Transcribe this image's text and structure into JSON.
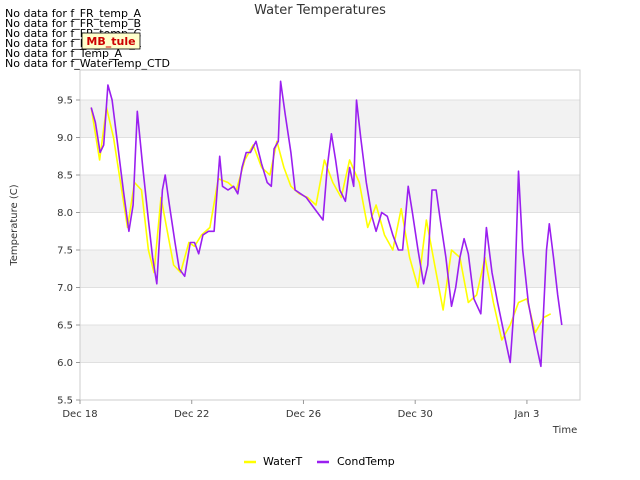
{
  "no_data_messages": [
    "No data for f_FR_temp_A",
    "No data for f_FR_temp_B",
    "No data for f_FR_temp_C",
    "No data for f_FD_Temp_1",
    "No data for f_Temp_A",
    "No data for f_WaterTemp_CTD"
  ],
  "mb_label": "MB_tule",
  "chart_data": {
    "type": "line",
    "title": "Water Temperatures",
    "xlabel": "Time",
    "ylabel": "Temperature (C)",
    "xlim": [
      0,
      17.9
    ],
    "ylim": [
      5.5,
      9.9
    ],
    "x_ticks": [
      {
        "label": "Dec 18",
        "x": 0
      },
      {
        "label": "Dec 22",
        "x": 4
      },
      {
        "label": "Dec 26",
        "x": 8
      },
      {
        "label": "Dec 30",
        "x": 12
      },
      {
        "label": "Jan 3",
        "x": 16
      }
    ],
    "y_ticks": [
      {
        "label": "5.5",
        "y": 5.5
      },
      {
        "label": "6.0",
        "y": 6.0
      },
      {
        "label": "6.5",
        "y": 6.5
      },
      {
        "label": "7.0",
        "y": 7.0
      },
      {
        "label": "7.5",
        "y": 7.5
      },
      {
        "label": "8.0",
        "y": 8.0
      },
      {
        "label": "8.5",
        "y": 8.5
      },
      {
        "label": "9.0",
        "y": 9.0
      },
      {
        "label": "9.5",
        "y": 9.5
      }
    ],
    "grid": true,
    "legend_position": "bottom-center",
    "series": [
      {
        "name": "WaterT",
        "color": "#ffff00",
        "points": [
          [
            0.4,
            9.4
          ],
          [
            0.7,
            8.7
          ],
          [
            0.95,
            9.4
          ],
          [
            1.2,
            9.0
          ],
          [
            1.45,
            8.4
          ],
          [
            1.7,
            7.8
          ],
          [
            1.95,
            8.4
          ],
          [
            2.2,
            8.3
          ],
          [
            2.45,
            7.5
          ],
          [
            2.65,
            7.2
          ],
          [
            2.9,
            8.2
          ],
          [
            3.1,
            7.8
          ],
          [
            3.35,
            7.3
          ],
          [
            3.6,
            7.2
          ],
          [
            3.9,
            7.6
          ],
          [
            4.1,
            7.55
          ],
          [
            4.35,
            7.7
          ],
          [
            4.65,
            7.8
          ],
          [
            4.95,
            8.45
          ],
          [
            5.3,
            8.4
          ],
          [
            5.6,
            8.3
          ],
          [
            5.9,
            8.7
          ],
          [
            6.2,
            8.9
          ],
          [
            6.5,
            8.6
          ],
          [
            6.8,
            8.5
          ],
          [
            7.05,
            8.95
          ],
          [
            7.3,
            8.6
          ],
          [
            7.55,
            8.35
          ],
          [
            7.85,
            8.25
          ],
          [
            8.15,
            8.2
          ],
          [
            8.45,
            8.1
          ],
          [
            8.75,
            8.7
          ],
          [
            9.05,
            8.4
          ],
          [
            9.35,
            8.2
          ],
          [
            9.65,
            8.7
          ],
          [
            10.0,
            8.4
          ],
          [
            10.3,
            7.8
          ],
          [
            10.6,
            8.1
          ],
          [
            10.9,
            7.7
          ],
          [
            11.2,
            7.5
          ],
          [
            11.5,
            8.05
          ],
          [
            11.8,
            7.4
          ],
          [
            12.1,
            7.0
          ],
          [
            12.4,
            7.9
          ],
          [
            12.7,
            7.3
          ],
          [
            13.0,
            6.7
          ],
          [
            13.3,
            7.5
          ],
          [
            13.6,
            7.4
          ],
          [
            13.9,
            6.8
          ],
          [
            14.2,
            6.9
          ],
          [
            14.5,
            7.4
          ],
          [
            14.8,
            6.8
          ],
          [
            15.1,
            6.3
          ],
          [
            15.4,
            6.5
          ],
          [
            15.7,
            6.8
          ],
          [
            16.0,
            6.85
          ],
          [
            16.3,
            6.4
          ],
          [
            16.6,
            6.6
          ],
          [
            16.85,
            6.65
          ]
        ]
      },
      {
        "name": "CondTemp",
        "color": "#9a1ff0",
        "points": [
          [
            0.4,
            9.4
          ],
          [
            0.55,
            9.2
          ],
          [
            0.72,
            8.8
          ],
          [
            0.85,
            8.9
          ],
          [
            1.0,
            9.7
          ],
          [
            1.15,
            9.5
          ],
          [
            1.35,
            8.9
          ],
          [
            1.55,
            8.3
          ],
          [
            1.75,
            7.75
          ],
          [
            1.9,
            8.1
          ],
          [
            2.05,
            9.35
          ],
          [
            2.25,
            8.6
          ],
          [
            2.45,
            7.9
          ],
          [
            2.6,
            7.4
          ],
          [
            2.75,
            7.05
          ],
          [
            2.95,
            8.3
          ],
          [
            3.05,
            8.5
          ],
          [
            3.2,
            8.1
          ],
          [
            3.4,
            7.6
          ],
          [
            3.55,
            7.25
          ],
          [
            3.75,
            7.15
          ],
          [
            3.95,
            7.6
          ],
          [
            4.1,
            7.6
          ],
          [
            4.25,
            7.45
          ],
          [
            4.4,
            7.7
          ],
          [
            4.6,
            7.75
          ],
          [
            4.8,
            7.75
          ],
          [
            5.0,
            8.75
          ],
          [
            5.1,
            8.35
          ],
          [
            5.3,
            8.3
          ],
          [
            5.5,
            8.35
          ],
          [
            5.65,
            8.25
          ],
          [
            5.8,
            8.6
          ],
          [
            5.95,
            8.8
          ],
          [
            6.1,
            8.8
          ],
          [
            6.3,
            8.95
          ],
          [
            6.5,
            8.65
          ],
          [
            6.7,
            8.4
          ],
          [
            6.85,
            8.35
          ],
          [
            6.95,
            8.85
          ],
          [
            7.1,
            8.95
          ],
          [
            7.18,
            9.75
          ],
          [
            7.35,
            9.3
          ],
          [
            7.55,
            8.8
          ],
          [
            7.7,
            8.3
          ],
          [
            7.9,
            8.25
          ],
          [
            8.1,
            8.2
          ],
          [
            8.3,
            8.1
          ],
          [
            8.5,
            8.0
          ],
          [
            8.7,
            7.9
          ],
          [
            8.85,
            8.6
          ],
          [
            9.0,
            9.05
          ],
          [
            9.15,
            8.7
          ],
          [
            9.3,
            8.3
          ],
          [
            9.5,
            8.15
          ],
          [
            9.65,
            8.6
          ],
          [
            9.8,
            8.35
          ],
          [
            9.9,
            9.5
          ],
          [
            10.05,
            9.0
          ],
          [
            10.25,
            8.4
          ],
          [
            10.45,
            7.95
          ],
          [
            10.6,
            7.75
          ],
          [
            10.8,
            8.0
          ],
          [
            11.0,
            7.95
          ],
          [
            11.2,
            7.7
          ],
          [
            11.4,
            7.5
          ],
          [
            11.55,
            7.5
          ],
          [
            11.75,
            8.35
          ],
          [
            11.9,
            8.0
          ],
          [
            12.1,
            7.5
          ],
          [
            12.3,
            7.05
          ],
          [
            12.45,
            7.3
          ],
          [
            12.6,
            8.3
          ],
          [
            12.75,
            8.3
          ],
          [
            12.9,
            7.9
          ],
          [
            13.1,
            7.4
          ],
          [
            13.3,
            6.75
          ],
          [
            13.45,
            7.0
          ],
          [
            13.6,
            7.4
          ],
          [
            13.75,
            7.65
          ],
          [
            13.9,
            7.45
          ],
          [
            14.1,
            6.85
          ],
          [
            14.35,
            6.65
          ],
          [
            14.55,
            7.8
          ],
          [
            14.75,
            7.2
          ],
          [
            14.95,
            6.8
          ],
          [
            15.2,
            6.35
          ],
          [
            15.4,
            6.0
          ],
          [
            15.55,
            6.8
          ],
          [
            15.7,
            8.55
          ],
          [
            15.85,
            7.5
          ],
          [
            16.05,
            6.8
          ],
          [
            16.3,
            6.3
          ],
          [
            16.5,
            5.95
          ],
          [
            16.7,
            7.5
          ],
          [
            16.8,
            7.85
          ],
          [
            16.95,
            7.4
          ],
          [
            17.1,
            6.9
          ],
          [
            17.25,
            6.5
          ]
        ]
      }
    ]
  }
}
